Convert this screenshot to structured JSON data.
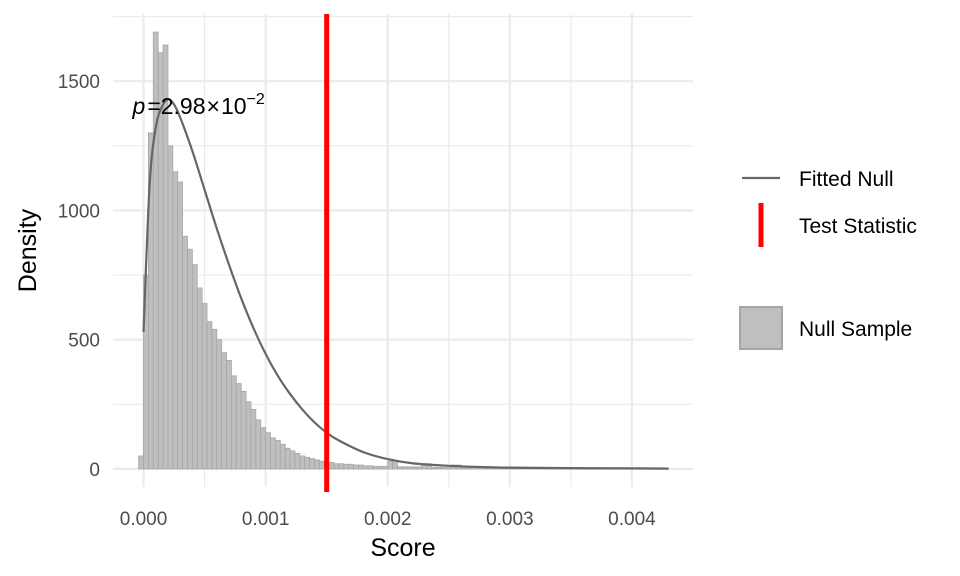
{
  "chart_data": {
    "type": "histogram",
    "title": "",
    "xlabel": "Score",
    "ylabel": "Density",
    "xlim": [
      -0.00025,
      0.0045
    ],
    "ylim": [
      -70,
      1760
    ],
    "x_ticks": [
      0,
      0.001,
      0.002,
      0.003,
      0.004
    ],
    "x_tick_labels": [
      "0.000",
      "0.001",
      "0.002",
      "0.003",
      "0.004"
    ],
    "y_ticks": [
      0,
      500,
      1000,
      1500
    ],
    "y_tick_labels": [
      "0",
      "500",
      "1000",
      "1500"
    ],
    "grid": true,
    "legend_position": "right",
    "bin_width": 4e-05,
    "histogram": {
      "name": "Null Sample",
      "bin_start": -4e-05,
      "values": [
        50,
        750,
        1300,
        1690,
        1610,
        1640,
        1250,
        1150,
        1110,
        900,
        850,
        790,
        700,
        640,
        570,
        540,
        500,
        450,
        420,
        360,
        330,
        300,
        260,
        230,
        190,
        160,
        140,
        120,
        110,
        95,
        80,
        70,
        60,
        50,
        45,
        40,
        35,
        30,
        25,
        25,
        20,
        20,
        18,
        18,
        15,
        15,
        12,
        12,
        10,
        10,
        10,
        30,
        30,
        8,
        8,
        8,
        8,
        8,
        20,
        20,
        6,
        6,
        5,
        5,
        15,
        15,
        5,
        5,
        5,
        5,
        5,
        3,
        3,
        3,
        3,
        3,
        3,
        3,
        3,
        3,
        3,
        3,
        3,
        3,
        3,
        3,
        3,
        3,
        3,
        3,
        3,
        3,
        3,
        3,
        3,
        3,
        3,
        3
      ]
    },
    "fitted_null": {
      "name": "Fitted Null",
      "x": [
        0,
        5e-05,
        0.0001,
        0.00015,
        0.0002,
        0.00025,
        0.0003,
        0.0004,
        0.0005,
        0.0006,
        0.0007,
        0.0008,
        0.0009,
        0.001,
        0.0011,
        0.0012,
        0.0013,
        0.0014,
        0.0015,
        0.0016,
        0.0018,
        0.002,
        0.0022,
        0.0025,
        0.0028,
        0.003,
        0.0035,
        0.004,
        0.0043
      ],
      "y": [
        530,
        1100,
        1320,
        1400,
        1430,
        1410,
        1360,
        1230,
        1080,
        930,
        790,
        660,
        545,
        445,
        360,
        290,
        230,
        180,
        140,
        110,
        65,
        38,
        22,
        12,
        7,
        5,
        3,
        2,
        1
      ]
    },
    "test_statistic": {
      "name": "Test Statistic",
      "x": 0.0015
    },
    "annotation": {
      "symbol": "p",
      "equals": "=",
      "mantissa": "2.98",
      "times": "×",
      "base": "10",
      "exponent": "−2",
      "x": 0,
      "y": 1350
    },
    "legend": {
      "items": [
        "Fitted Null",
        "Test Statistic",
        "Null Sample"
      ]
    },
    "colors": {
      "bar_fill": "#bfbfbf",
      "bar_stroke": "#a6a6a6",
      "fitted_line": "#666666",
      "test_line": "#ff0000",
      "grid": "#ebebeb"
    }
  }
}
